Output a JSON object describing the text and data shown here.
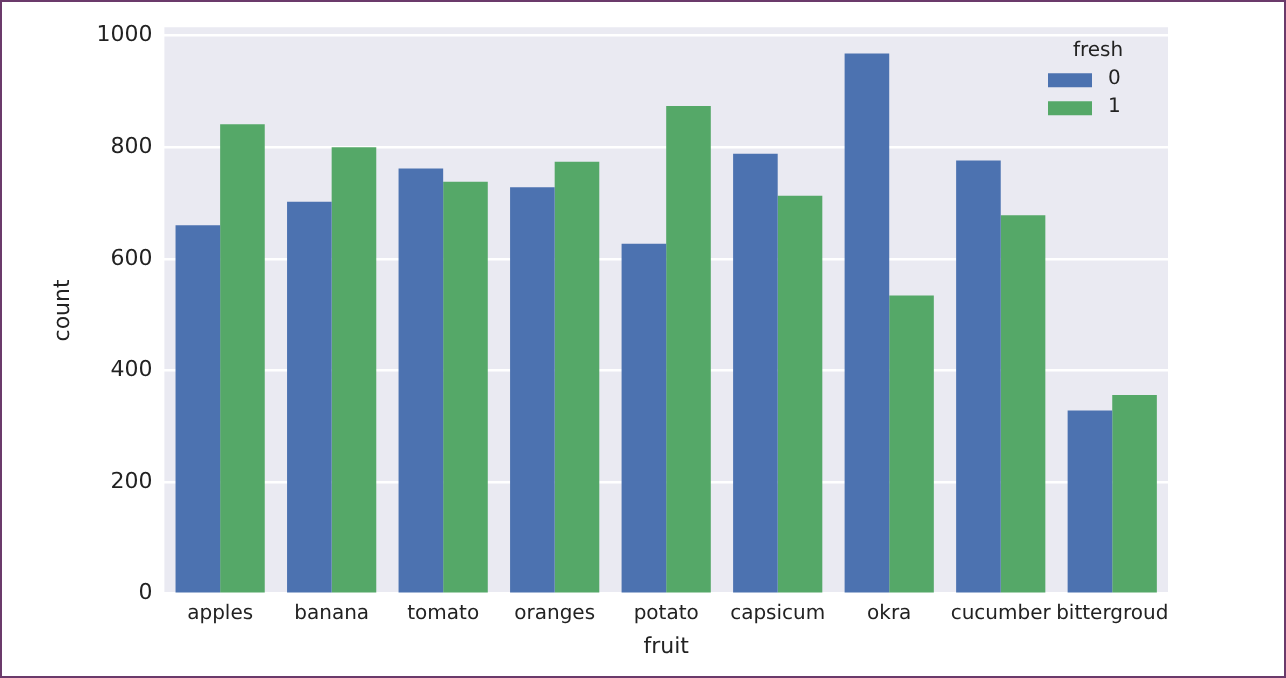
{
  "chart_data": {
    "type": "bar",
    "xlabel": "fruit",
    "ylabel": "count",
    "legend_title": "fresh",
    "legend": "top right",
    "grid": "y",
    "categories": [
      "apples",
      "banana",
      "tomato",
      "oranges",
      "potato",
      "capsicum",
      "okra",
      "cucumber",
      "bittergroud"
    ],
    "series": [
      {
        "name": "0",
        "color": "#4c72b0",
        "values": [
          660,
          702,
          762,
          728,
          627,
          788,
          968,
          776,
          328
        ]
      },
      {
        "name": "1",
        "color": "#55a868",
        "values": [
          841,
          800,
          738,
          774,
          874,
          713,
          534,
          678,
          356
        ]
      }
    ],
    "ylim": [
      0,
      1015
    ],
    "yticks": [
      0,
      200,
      400,
      600,
      800,
      1000
    ]
  }
}
